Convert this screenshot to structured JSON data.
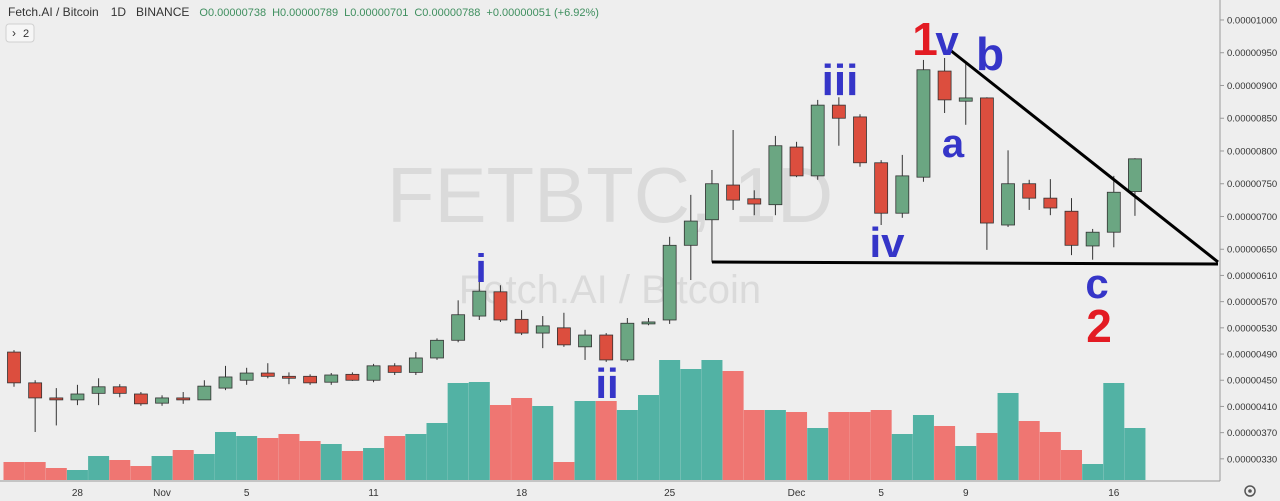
{
  "chart_data": {
    "type": "candlestick",
    "title": "Fetch.AI / Bitcoin",
    "interval": "1D",
    "exchange": "BINANCE",
    "legend_values": [
      "O0.00000738",
      "H0.00000789",
      "L0.00000701",
      "C0.00000788",
      "+0.00000051 (+6.92%)"
    ],
    "indicator_count": "2",
    "watermark": "FETBTC, 1D",
    "categories": [
      null,
      null,
      null,
      "28",
      null,
      null,
      null,
      "Nov",
      null,
      null,
      null,
      "5",
      null,
      null,
      null,
      null,
      null,
      "11",
      null,
      null,
      null,
      null,
      null,
      null,
      "18",
      null,
      null,
      null,
      null,
      null,
      null,
      "25",
      null,
      null,
      null,
      null,
      null,
      "Dec",
      null,
      null,
      null,
      "5",
      null,
      null,
      null,
      "9",
      null,
      null,
      null,
      null,
      null,
      null,
      "16",
      null
    ],
    "open": [
      4.93e-06,
      4.46e-06,
      4.23e-06,
      4.2e-06,
      4.3e-06,
      4.4e-06,
      4.29e-06,
      4.15e-06,
      4.23e-06,
      4.2e-06,
      4.38e-06,
      4.5e-06,
      4.61e-06,
      4.56e-06,
      4.56e-06,
      4.47e-06,
      4.59e-06,
      4.5e-06,
      4.72e-06,
      4.62e-06,
      4.84e-06,
      5.11e-06,
      5.48e-06,
      5.85e-06,
      5.43e-06,
      5.22e-06,
      5.3e-06,
      5.01e-06,
      5.19e-06,
      4.81e-06,
      5.36e-06,
      5.42e-06,
      6.56e-06,
      6.95e-06,
      7.48e-06,
      7.27e-06,
      7.18e-06,
      8.06e-06,
      7.62e-06,
      8.7e-06,
      8.52e-06,
      7.82e-06,
      7.05e-06,
      7.6e-06,
      9.22e-06,
      8.76e-06,
      8.81e-06,
      6.87e-06,
      7.5e-06,
      7.28e-06,
      7.08e-06,
      6.55e-06,
      6.76e-06,
      7.38e-06
    ],
    "high": [
      4.96e-06,
      4.5e-06,
      4.38e-06,
      4.43e-06,
      4.53e-06,
      4.44e-06,
      4.32e-06,
      4.27e-06,
      4.32e-06,
      4.5e-06,
      4.72e-06,
      4.69e-06,
      4.76e-06,
      4.62e-06,
      4.59e-06,
      4.61e-06,
      4.62e-06,
      4.75e-06,
      4.76e-06,
      4.93e-06,
      5.14e-06,
      5.72e-06,
      6.08e-06,
      5.95e-06,
      5.57e-06,
      5.48e-06,
      5.53e-06,
      5.27e-06,
      5.22e-06,
      5.45e-06,
      5.45e-06,
      6.69e-06,
      7.33e-06,
      7.71e-06,
      8.32e-06,
      7.4e-06,
      8.23e-06,
      8.14e-06,
      8.78e-06,
      8.82e-06,
      8.56e-06,
      7.86e-06,
      7.94e-06,
      9.39e-06,
      9.42e-06,
      9.36e-06,
      8.82e-06,
      8.01e-06,
      7.56e-06,
      7.57e-06,
      7.28e-06,
      6.81e-06,
      7.62e-06,
      7.89e-06
    ],
    "low": [
      4.4e-06,
      3.71e-06,
      3.81e-06,
      4.12e-06,
      4.12e-06,
      4.24e-06,
      4.11e-06,
      4.11e-06,
      4.14e-06,
      4.2e-06,
      4.35e-06,
      4.43e-06,
      4.53e-06,
      4.44e-06,
      4.43e-06,
      4.43e-06,
      4.49e-06,
      4.47e-06,
      4.58e-06,
      4.58e-06,
      4.81e-06,
      5.08e-06,
      5.42e-06,
      5.39e-06,
      5.19e-06,
      4.99e-06,
      5.01e-06,
      4.81e-06,
      4.78e-06,
      4.78e-06,
      5.34e-06,
      5.36e-06,
      6.03e-06,
      6.3e-06,
      7.1e-06,
      7.02e-06,
      7.02e-06,
      7.6e-06,
      7.56e-06,
      8.08e-06,
      7.76e-06,
      6.87e-06,
      6.98e-06,
      7.53e-06,
      8.58e-06,
      8.4e-06,
      6.49e-06,
      6.84e-06,
      7.1e-06,
      7.02e-06,
      6.41e-06,
      6.34e-06,
      6.53e-06,
      7.01e-06
    ],
    "close": [
      4.46e-06,
      4.23e-06,
      4.2e-06,
      4.29e-06,
      4.4e-06,
      4.3e-06,
      4.14e-06,
      4.23e-06,
      4.2e-06,
      4.41e-06,
      4.55e-06,
      4.61e-06,
      4.56e-06,
      4.53e-06,
      4.46e-06,
      4.58e-06,
      4.5e-06,
      4.72e-06,
      4.62e-06,
      4.84e-06,
      5.11e-06,
      5.5e-06,
      5.86e-06,
      5.42e-06,
      5.22e-06,
      5.33e-06,
      5.04e-06,
      5.19e-06,
      4.81e-06,
      5.37e-06,
      5.39e-06,
      6.56e-06,
      6.93e-06,
      7.5e-06,
      7.25e-06,
      7.19e-06,
      8.08e-06,
      7.62e-06,
      8.7e-06,
      8.5e-06,
      7.82e-06,
      7.05e-06,
      7.62e-06,
      9.24e-06,
      8.78e-06,
      8.81e-06,
      6.9e-06,
      7.5e-06,
      7.28e-06,
      7.13e-06,
      6.56e-06,
      6.76e-06,
      7.37e-06,
      7.88e-06
    ],
    "volume": [
      18,
      18,
      12,
      10,
      24,
      20,
      14,
      24,
      30,
      26,
      48,
      44,
      42,
      46,
      39,
      36,
      29,
      32,
      44,
      46,
      57,
      97,
      98,
      75,
      82,
      74,
      18,
      79,
      79,
      70,
      85,
      120,
      111,
      120,
      109,
      70,
      70,
      68,
      52,
      68,
      68,
      70,
      46,
      65,
      54,
      34,
      47,
      87,
      59,
      48,
      30,
      16,
      97,
      52
    ],
    "volume_lim": [
      0,
      480
    ],
    "up_color": "#6ba682",
    "down_color": "#dc4e3e",
    "volume_up_color": "#52b2a4",
    "volume_down_color": "#ef7672",
    "ylim": [
      2.977e-06,
      1.0305e-05
    ],
    "yticks": [
      {
        "value": 1e-05,
        "label": "0.00001000"
      },
      {
        "value": 9.5e-06,
        "label": "0.00000950"
      },
      {
        "value": 9e-06,
        "label": "0.00000900"
      },
      {
        "value": 8.5e-06,
        "label": "0.00000850"
      },
      {
        "value": 8e-06,
        "label": "0.00000800"
      },
      {
        "value": 7.5e-06,
        "label": "0.00000750"
      },
      {
        "value": 7e-06,
        "label": "0.00000700"
      },
      {
        "value": 6.5e-06,
        "label": "0.00000650"
      },
      {
        "value": 6.1e-06,
        "label": "0.00000610"
      },
      {
        "value": 5.7e-06,
        "label": "0.00000570"
      },
      {
        "value": 5.3e-06,
        "label": "0.00000530"
      },
      {
        "value": 4.9e-06,
        "label": "0.00000490"
      },
      {
        "value": 4.5e-06,
        "label": "0.00000450"
      },
      {
        "value": 4.1e-06,
        "label": "0.00000410"
      },
      {
        "value": 3.7e-06,
        "label": "0.00000370"
      },
      {
        "value": 3.3e-06,
        "label": "0.00000330"
      }
    ],
    "annotations": [
      {
        "text": "1",
        "color": "#e31b23"
      },
      {
        "text": "v",
        "color": "#3535c8"
      },
      {
        "text": "b",
        "color": "#3535c8"
      },
      {
        "text": "iii",
        "color": "#3535c8"
      },
      {
        "text": "a",
        "color": "#3535c8"
      },
      {
        "text": "iv",
        "color": "#3535c8"
      },
      {
        "text": "i",
        "color": "#3535c8"
      },
      {
        "text": "ii",
        "color": "#3535c8"
      },
      {
        "text": "c",
        "color": "#3535c8"
      },
      {
        "text": "2",
        "color": "#e31b23"
      }
    ]
  }
}
